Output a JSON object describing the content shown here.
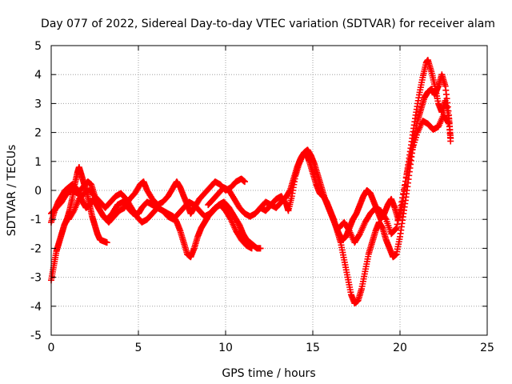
{
  "chart_data": {
    "type": "scatter",
    "title": "Day 077 of 2022, Sidereal Day-to-day VTEC variation (SDTVAR) for receiver alam",
    "xlabel": "GPS time / hours",
    "ylabel": "SDTVAR / TECUs",
    "xlim": [
      0,
      25
    ],
    "ylim": [
      -5,
      5
    ],
    "xticks": [
      "0",
      "5",
      "10",
      "15",
      "20",
      "25"
    ],
    "yticks": [
      "-5",
      "-4",
      "-3",
      "-2",
      "-1",
      "0",
      "1",
      "2",
      "3",
      "4",
      "5"
    ],
    "grid": true,
    "marker": "plus",
    "color": "#ff0000",
    "series": [
      {
        "points": [
          [
            0.0,
            -3.1
          ],
          [
            0.15,
            -2.6
          ],
          [
            0.3,
            -2.1
          ],
          [
            0.45,
            -1.8
          ],
          [
            0.6,
            -1.5
          ],
          [
            0.75,
            -1.2
          ],
          [
            0.9,
            -1.0
          ],
          [
            1.05,
            -0.7
          ],
          [
            1.2,
            -0.3
          ],
          [
            1.35,
            0.2
          ],
          [
            1.5,
            0.6
          ],
          [
            1.6,
            0.8
          ],
          [
            1.75,
            0.5
          ],
          [
            1.9,
            0.2
          ],
          [
            2.05,
            -0.1
          ],
          [
            2.2,
            -0.5
          ],
          [
            2.35,
            -0.9
          ],
          [
            2.5,
            -1.2
          ],
          [
            2.65,
            -1.5
          ],
          [
            2.8,
            -1.7
          ],
          [
            3.0,
            -1.75
          ],
          [
            3.2,
            -1.8
          ]
        ]
      },
      {
        "points": [
          [
            0.0,
            -1.1
          ],
          [
            0.2,
            -0.7
          ],
          [
            0.4,
            -0.4
          ],
          [
            0.6,
            -0.2
          ],
          [
            0.8,
            0.0
          ],
          [
            1.0,
            0.1
          ],
          [
            1.2,
            0.2
          ],
          [
            1.4,
            0.1
          ],
          [
            1.6,
            -0.1
          ],
          [
            1.8,
            -0.4
          ],
          [
            2.0,
            -0.6
          ],
          [
            2.2,
            -0.5
          ],
          [
            2.4,
            -0.3
          ],
          [
            2.6,
            -0.5
          ],
          [
            2.8,
            -0.7
          ],
          [
            3.0,
            -0.9
          ],
          [
            3.2,
            -1.0
          ],
          [
            3.5,
            -0.8
          ],
          [
            3.8,
            -0.5
          ],
          [
            4.1,
            -0.4
          ],
          [
            4.4,
            -0.6
          ],
          [
            4.7,
            -0.8
          ],
          [
            5.0,
            -0.8
          ],
          [
            5.2,
            -0.6
          ],
          [
            5.5,
            -0.4
          ],
          [
            5.8,
            -0.5
          ],
          [
            6.1,
            -0.6
          ],
          [
            6.4,
            -0.7
          ],
          [
            6.7,
            -0.8
          ],
          [
            7.0,
            -0.9
          ],
          [
            7.2,
            -1.1
          ],
          [
            7.4,
            -1.4
          ],
          [
            7.6,
            -1.8
          ],
          [
            7.8,
            -2.2
          ],
          [
            8.0,
            -2.3
          ],
          [
            8.2,
            -2.0
          ],
          [
            8.4,
            -1.6
          ],
          [
            8.6,
            -1.3
          ],
          [
            8.8,
            -1.1
          ],
          [
            9.0,
            -0.9
          ],
          [
            9.3,
            -0.7
          ],
          [
            9.6,
            -0.5
          ],
          [
            9.9,
            -0.4
          ],
          [
            10.2,
            -0.6
          ],
          [
            10.5,
            -0.9
          ],
          [
            10.8,
            -1.2
          ],
          [
            11.0,
            -1.5
          ],
          [
            11.2,
            -1.7
          ],
          [
            11.4,
            -1.8
          ],
          [
            11.6,
            -1.9
          ],
          [
            11.8,
            -2.0
          ],
          [
            12.0,
            -2.0
          ]
        ]
      },
      {
        "points": [
          [
            0.0,
            -0.8
          ],
          [
            0.3,
            -0.6
          ],
          [
            0.6,
            -0.4
          ],
          [
            0.9,
            -0.1
          ],
          [
            1.2,
            0.0
          ],
          [
            1.5,
            -0.1
          ],
          [
            1.8,
            0.1
          ],
          [
            2.1,
            0.3
          ],
          [
            2.3,
            0.2
          ],
          [
            2.5,
            -0.2
          ],
          [
            2.7,
            -0.6
          ],
          [
            3.0,
            -0.9
          ],
          [
            3.3,
            -1.1
          ],
          [
            3.6,
            -0.9
          ],
          [
            3.9,
            -0.7
          ],
          [
            4.2,
            -0.6
          ],
          [
            4.5,
            -0.3
          ],
          [
            4.8,
            -0.1
          ],
          [
            5.1,
            0.2
          ],
          [
            5.3,
            0.3
          ],
          [
            5.5,
            0.0
          ],
          [
            5.8,
            -0.3
          ],
          [
            6.1,
            -0.5
          ],
          [
            6.4,
            -0.4
          ],
          [
            6.7,
            -0.2
          ],
          [
            7.0,
            0.1
          ],
          [
            7.2,
            0.3
          ],
          [
            7.4,
            0.1
          ],
          [
            7.6,
            -0.2
          ],
          [
            7.8,
            -0.5
          ],
          [
            8.0,
            -0.8
          ],
          [
            8.2,
            -0.6
          ],
          [
            8.5,
            -0.3
          ],
          [
            8.8,
            -0.1
          ],
          [
            9.1,
            0.1
          ],
          [
            9.4,
            0.3
          ],
          [
            9.7,
            0.2
          ],
          [
            10.0,
            0.0
          ],
          [
            10.3,
            0.1
          ],
          [
            10.6,
            0.3
          ],
          [
            10.9,
            0.4
          ],
          [
            11.1,
            0.3
          ]
        ]
      },
      {
        "points": [
          [
            1.0,
            -1.0
          ],
          [
            1.3,
            -0.7
          ],
          [
            1.6,
            -0.3
          ],
          [
            1.9,
            -0.1
          ],
          [
            2.2,
            0.0
          ],
          [
            2.5,
            -0.2
          ],
          [
            2.8,
            -0.4
          ],
          [
            3.1,
            -0.6
          ],
          [
            3.4,
            -0.4
          ],
          [
            3.7,
            -0.2
          ],
          [
            4.0,
            -0.1
          ],
          [
            4.3,
            -0.3
          ],
          [
            4.6,
            -0.6
          ],
          [
            4.9,
            -0.9
          ],
          [
            5.2,
            -1.1
          ],
          [
            5.5,
            -1.0
          ],
          [
            5.8,
            -0.8
          ],
          [
            6.1,
            -0.6
          ],
          [
            6.4,
            -0.7
          ],
          [
            6.7,
            -0.9
          ],
          [
            7.0,
            -1.0
          ],
          [
            7.3,
            -0.8
          ],
          [
            7.6,
            -0.6
          ],
          [
            7.9,
            -0.4
          ],
          [
            8.2,
            -0.5
          ],
          [
            8.5,
            -0.7
          ],
          [
            8.8,
            -0.9
          ],
          [
            9.1,
            -0.8
          ],
          [
            9.4,
            -0.6
          ],
          [
            9.7,
            -0.5
          ],
          [
            10.0,
            -0.7
          ],
          [
            10.3,
            -1.0
          ],
          [
            10.6,
            -1.4
          ],
          [
            10.9,
            -1.7
          ],
          [
            11.2,
            -1.9
          ],
          [
            11.5,
            -2.0
          ]
        ]
      },
      {
        "points": [
          [
            9.0,
            -0.5
          ],
          [
            9.3,
            -0.3
          ],
          [
            9.6,
            -0.1
          ],
          [
            9.9,
            0.1
          ],
          [
            10.2,
            0.0
          ],
          [
            10.5,
            -0.3
          ],
          [
            10.8,
            -0.6
          ],
          [
            11.1,
            -0.8
          ],
          [
            11.4,
            -0.9
          ],
          [
            11.7,
            -0.8
          ],
          [
            12.0,
            -0.6
          ],
          [
            12.3,
            -0.4
          ],
          [
            12.6,
            -0.5
          ],
          [
            12.9,
            -0.6
          ],
          [
            13.2,
            -0.4
          ],
          [
            13.5,
            -0.2
          ],
          [
            13.7,
            0.0
          ],
          [
            13.9,
            0.4
          ],
          [
            14.1,
            0.8
          ],
          [
            14.3,
            1.1
          ],
          [
            14.5,
            1.3
          ],
          [
            14.7,
            1.4
          ],
          [
            14.9,
            1.2
          ],
          [
            15.1,
            0.9
          ],
          [
            15.3,
            0.5
          ],
          [
            15.5,
            0.1
          ],
          [
            15.7,
            -0.3
          ],
          [
            15.9,
            -0.6
          ],
          [
            16.1,
            -0.9
          ],
          [
            16.3,
            -1.2
          ],
          [
            16.5,
            -1.5
          ],
          [
            16.7,
            -1.7
          ],
          [
            16.9,
            -1.6
          ],
          [
            17.1,
            -1.3
          ],
          [
            17.3,
            -1.0
          ],
          [
            17.5,
            -0.8
          ],
          [
            17.7,
            -0.5
          ],
          [
            17.9,
            -0.2
          ],
          [
            18.1,
            0.0
          ],
          [
            18.3,
            -0.1
          ],
          [
            18.5,
            -0.4
          ],
          [
            18.7,
            -0.7
          ],
          [
            18.9,
            -1.0
          ],
          [
            19.1,
            -0.8
          ],
          [
            19.3,
            -0.5
          ],
          [
            19.5,
            -0.3
          ],
          [
            19.7,
            -0.6
          ],
          [
            19.9,
            -1.0
          ],
          [
            20.1,
            -0.6
          ],
          [
            20.3,
            0.2
          ],
          [
            20.5,
            1.0
          ],
          [
            20.7,
            1.8
          ],
          [
            20.9,
            2.6
          ],
          [
            21.1,
            3.3
          ],
          [
            21.3,
            3.9
          ],
          [
            21.5,
            4.4
          ],
          [
            21.6,
            4.5
          ],
          [
            21.8,
            4.1
          ],
          [
            22.0,
            3.6
          ],
          [
            22.2,
            3.0
          ],
          [
            22.4,
            2.7
          ],
          [
            22.6,
            3.1
          ],
          [
            22.8,
            2.5
          ],
          [
            22.9,
            1.8
          ]
        ]
      },
      {
        "points": [
          [
            12.0,
            -0.6
          ],
          [
            12.3,
            -0.7
          ],
          [
            12.6,
            -0.5
          ],
          [
            12.9,
            -0.3
          ],
          [
            13.2,
            -0.2
          ],
          [
            13.5,
            -0.5
          ],
          [
            13.6,
            -0.7
          ],
          [
            13.8,
            -0.2
          ],
          [
            14.0,
            0.5
          ],
          [
            14.2,
            0.9
          ],
          [
            14.4,
            1.2
          ],
          [
            14.6,
            1.3
          ],
          [
            14.8,
            1.0
          ],
          [
            15.0,
            0.6
          ],
          [
            15.2,
            0.2
          ],
          [
            15.4,
            -0.1
          ],
          [
            15.6,
            -0.2
          ],
          [
            15.8,
            -0.4
          ],
          [
            16.0,
            -0.7
          ],
          [
            16.2,
            -1.0
          ],
          [
            16.4,
            -1.4
          ],
          [
            16.6,
            -1.8
          ],
          [
            16.8,
            -2.4
          ],
          [
            17.0,
            -3.0
          ],
          [
            17.2,
            -3.6
          ],
          [
            17.4,
            -3.9
          ],
          [
            17.6,
            -3.8
          ],
          [
            17.8,
            -3.4
          ],
          [
            18.0,
            -2.8
          ],
          [
            18.2,
            -2.2
          ],
          [
            18.4,
            -1.8
          ],
          [
            18.6,
            -1.4
          ],
          [
            18.8,
            -1.1
          ],
          [
            19.0,
            -1.3
          ],
          [
            19.2,
            -1.7
          ],
          [
            19.4,
            -2.0
          ],
          [
            19.6,
            -2.3
          ],
          [
            19.8,
            -2.2
          ],
          [
            20.0,
            -1.6
          ],
          [
            20.2,
            -0.8
          ],
          [
            20.4,
            0.0
          ],
          [
            20.6,
            0.9
          ],
          [
            20.8,
            1.8
          ],
          [
            21.0,
            2.4
          ],
          [
            21.2,
            2.8
          ],
          [
            21.4,
            3.2
          ],
          [
            21.6,
            3.4
          ],
          [
            21.8,
            3.5
          ],
          [
            22.0,
            3.3
          ],
          [
            22.2,
            3.6
          ],
          [
            22.4,
            4.0
          ],
          [
            22.6,
            3.6
          ],
          [
            22.8,
            2.6
          ],
          [
            22.9,
            1.7
          ]
        ]
      },
      {
        "points": [
          [
            16.5,
            -1.3
          ],
          [
            16.8,
            -1.1
          ],
          [
            17.1,
            -1.4
          ],
          [
            17.4,
            -1.8
          ],
          [
            17.7,
            -1.5
          ],
          [
            18.0,
            -1.1
          ],
          [
            18.3,
            -0.8
          ],
          [
            18.6,
            -0.6
          ],
          [
            18.9,
            -0.7
          ],
          [
            19.2,
            -1.0
          ],
          [
            19.5,
            -1.5
          ],
          [
            19.8,
            -1.3
          ],
          [
            20.1,
            -0.4
          ],
          [
            20.4,
            0.6
          ],
          [
            20.7,
            1.4
          ],
          [
            21.0,
            2.0
          ],
          [
            21.3,
            2.4
          ],
          [
            21.6,
            2.3
          ],
          [
            21.9,
            2.1
          ],
          [
            22.2,
            2.2
          ],
          [
            22.5,
            2.6
          ],
          [
            22.8,
            2.3
          ]
        ]
      }
    ]
  }
}
